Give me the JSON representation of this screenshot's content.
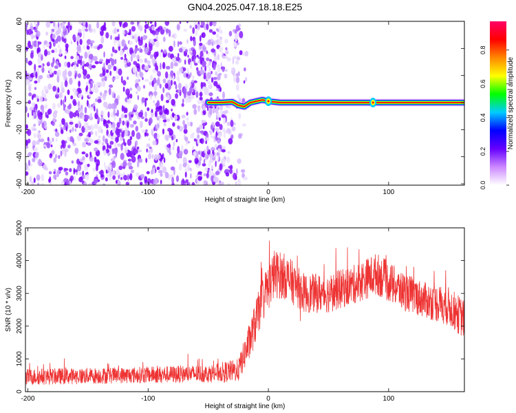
{
  "figure": {
    "title": "GN04.2025.047.18.18.E25"
  },
  "chart_data": [
    {
      "type": "heatmap",
      "xlabel": "Height of straight line (km)",
      "ylabel": "Frequency (Hz)",
      "xlim": [
        -202,
        163
      ],
      "ylim": [
        -61,
        60
      ],
      "xticks": [
        -200,
        -100,
        0,
        100
      ],
      "yticks": [
        60,
        40,
        20,
        0,
        -20,
        -40,
        -60
      ],
      "noise_region_x": [
        -202,
        -30
      ],
      "ridge": [
        {
          "x": -50,
          "y": 0
        },
        {
          "x": -40,
          "y": 0
        },
        {
          "x": -30,
          "y": 0.5
        },
        {
          "x": -25,
          "y": -2
        },
        {
          "x": -20,
          "y": -3
        },
        {
          "x": -15,
          "y": 0
        },
        {
          "x": -10,
          "y": 1
        },
        {
          "x": -5,
          "y": 2
        },
        {
          "x": 0,
          "y": 1
        },
        {
          "x": 10,
          "y": 0
        },
        {
          "x": 163,
          "y": 0
        }
      ],
      "ridge_hotspots": [
        {
          "x": 0,
          "y": 1
        },
        {
          "x": 87,
          "y": 0
        }
      ],
      "colorbar": {
        "label": "Normalized spectral amplitude",
        "ticks": [
          0.0,
          0.2,
          0.4,
          0.6,
          0.8
        ],
        "range": [
          0,
          0.97
        ],
        "colors": [
          "#ffffff",
          "#cc88ff",
          "#6600ff",
          "#0000ff",
          "#00ccff",
          "#00ff00",
          "#ffff00",
          "#ff8800",
          "#ff0000",
          "#ff0066"
        ]
      }
    },
    {
      "type": "line",
      "xlabel": "Height of straight line (km)",
      "ylabel": "SNR (10 * v/v)",
      "xlim": [
        -202,
        163
      ],
      "ylim": [
        0,
        5000
      ],
      "xticks": [
        -200,
        -100,
        0,
        100
      ],
      "yticks": [
        0,
        1000,
        2000,
        3000,
        4000,
        5000
      ],
      "color": "#ee3333",
      "envelope": [
        {
          "x": -202,
          "mean": 450,
          "spread": 500
        },
        {
          "x": -120,
          "mean": 500,
          "spread": 500
        },
        {
          "x": -50,
          "mean": 550,
          "spread": 550
        },
        {
          "x": -25,
          "mean": 650,
          "spread": 700
        },
        {
          "x": -15,
          "mean": 1600,
          "spread": 1200
        },
        {
          "x": -5,
          "mean": 2800,
          "spread": 1400
        },
        {
          "x": 5,
          "mean": 3600,
          "spread": 1500
        },
        {
          "x": 15,
          "mean": 3500,
          "spread": 1400
        },
        {
          "x": 30,
          "mean": 3000,
          "spread": 1200
        },
        {
          "x": 50,
          "mean": 3000,
          "spread": 1200
        },
        {
          "x": 70,
          "mean": 3250,
          "spread": 1200
        },
        {
          "x": 90,
          "mean": 3600,
          "spread": 1300
        },
        {
          "x": 110,
          "mean": 3100,
          "spread": 1200
        },
        {
          "x": 130,
          "mean": 2800,
          "spread": 1100
        },
        {
          "x": 150,
          "mean": 2600,
          "spread": 1200
        },
        {
          "x": 163,
          "mean": 2200,
          "spread": 1200
        }
      ]
    }
  ]
}
